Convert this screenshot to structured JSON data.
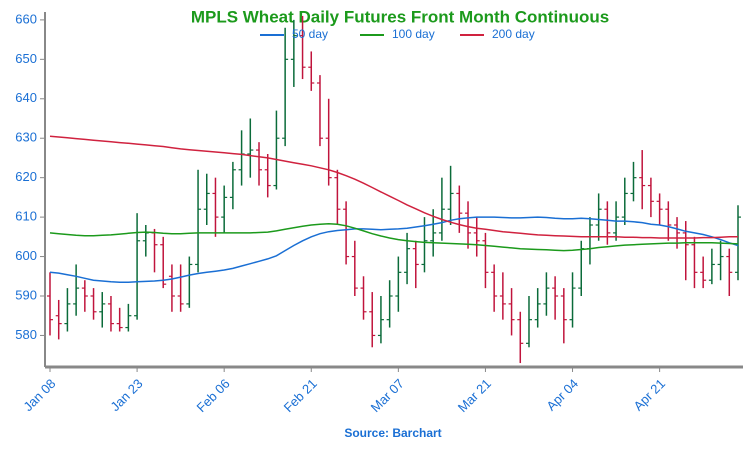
{
  "chart_data": {
    "type": "ohlc",
    "title": "MPLS Wheat Daily Futures Front Month Continuous",
    "source": "Source: Barchart",
    "categories": [
      "Jan 08",
      null,
      null,
      null,
      null,
      null,
      null,
      null,
      null,
      null,
      "Jan 23",
      null,
      null,
      null,
      null,
      null,
      null,
      null,
      null,
      null,
      "Feb 06",
      null,
      null,
      null,
      null,
      null,
      null,
      null,
      null,
      null,
      "Feb 21",
      null,
      null,
      null,
      null,
      null,
      null,
      null,
      null,
      null,
      "Mar 07",
      null,
      null,
      null,
      null,
      null,
      null,
      null,
      null,
      null,
      "Mar 21",
      null,
      null,
      null,
      null,
      null,
      null,
      null,
      null,
      null,
      "Apr 04",
      null,
      null,
      null,
      null,
      null,
      null,
      null,
      null,
      null,
      "Apr 21",
      null,
      null,
      null,
      null,
      null,
      null,
      null,
      null,
      null
    ],
    "open": [
      590,
      585,
      583,
      588,
      592,
      590,
      586,
      588,
      583,
      582,
      585,
      604,
      606,
      603,
      595,
      590,
      588,
      598,
      612,
      616,
      610,
      615,
      622,
      626,
      627,
      622,
      618,
      630,
      650,
      656,
      648,
      644,
      630,
      620,
      612,
      600,
      592,
      586,
      580,
      584,
      590,
      596,
      602,
      598,
      604,
      606,
      612,
      616,
      611,
      606,
      604,
      596,
      590,
      588,
      584,
      578,
      584,
      588,
      592,
      590,
      584,
      592,
      602,
      608,
      612,
      606,
      610,
      616,
      620,
      618,
      614,
      612,
      608,
      606,
      603,
      596,
      594,
      598,
      600,
      596
    ],
    "high": [
      596,
      589,
      592,
      598,
      594,
      592,
      591,
      590,
      587,
      588,
      611,
      608,
      607,
      605,
      598,
      598,
      600,
      622,
      621,
      620,
      618,
      624,
      632,
      635,
      629,
      626,
      637,
      658,
      660,
      661,
      652,
      646,
      640,
      622,
      614,
      604,
      595,
      591,
      590,
      594,
      600,
      606,
      604,
      610,
      612,
      620,
      623,
      618,
      614,
      610,
      606,
      598,
      596,
      592,
      586,
      590,
      592,
      596,
      595,
      592,
      596,
      604,
      610,
      616,
      614,
      614,
      620,
      624,
      627,
      620,
      616,
      614,
      610,
      609,
      605,
      600,
      602,
      604,
      602,
      613
    ],
    "low": [
      580,
      579,
      581,
      585,
      586,
      584,
      582,
      581,
      581,
      581,
      584,
      600,
      596,
      592,
      586,
      586,
      587,
      596,
      608,
      605,
      606,
      612,
      618,
      620,
      618,
      615,
      617,
      628,
      643,
      645,
      642,
      628,
      618,
      608,
      598,
      590,
      584,
      577,
      578,
      582,
      586,
      593,
      592,
      596,
      600,
      604,
      608,
      606,
      602,
      600,
      592,
      586,
      584,
      580,
      573,
      577,
      582,
      585,
      584,
      578,
      582,
      590,
      598,
      604,
      603,
      604,
      608,
      614,
      612,
      610,
      608,
      604,
      602,
      594,
      592,
      592,
      593,
      594,
      590,
      594
    ],
    "close": [
      584,
      583,
      588,
      592,
      590,
      586,
      588,
      583,
      582,
      585,
      604,
      606,
      603,
      593,
      590,
      588,
      598,
      612,
      616,
      610,
      615,
      622,
      626,
      627,
      622,
      618,
      630,
      650,
      656,
      648,
      644,
      630,
      620,
      612,
      600,
      592,
      586,
      580,
      584,
      590,
      596,
      602,
      598,
      604,
      606,
      612,
      616,
      611,
      606,
      604,
      596,
      590,
      588,
      584,
      578,
      584,
      588,
      592,
      590,
      584,
      592,
      602,
      608,
      612,
      606,
      610,
      616,
      620,
      618,
      614,
      612,
      608,
      606,
      603,
      596,
      594,
      598,
      600,
      596,
      610
    ],
    "up_color": "#0b6b3a",
    "down_color": "#c0143c",
    "series": [
      {
        "name": "50 day",
        "color": "#1a6fd4",
        "values": [
          596,
          595.8,
          595.4,
          595,
          594.5,
          594,
          593.8,
          593.6,
          593.5,
          593.5,
          593.6,
          593.7,
          593.8,
          594,
          594.3,
          594.8,
          595.3,
          595.7,
          596,
          596.3,
          596.6,
          597,
          597.6,
          598.2,
          598.8,
          599.4,
          600.2,
          601.5,
          602.8,
          604,
          605,
          605.8,
          606.3,
          606.6,
          606.8,
          607,
          607,
          606.9,
          606.8,
          606.9,
          607,
          607.2,
          607.5,
          607.8,
          608.2,
          608.6,
          609.2,
          609.6,
          609.8,
          610,
          610,
          610,
          609.9,
          609.8,
          609.8,
          609.9,
          610,
          609.9,
          609.7,
          609.6,
          609.6,
          609.7,
          609.6,
          609.4,
          609.2,
          609,
          609,
          608.8,
          608.6,
          608.2,
          608,
          607.6,
          607,
          606.4,
          606,
          605.6,
          605,
          604.3,
          603.5,
          602.8
        ]
      },
      {
        "name": "100 day",
        "color": "#1c9a1c",
        "values": [
          606,
          605.8,
          605.6,
          605.4,
          605.3,
          605.3,
          605.4,
          605.5,
          605.7,
          605.9,
          606.1,
          606.2,
          606.1,
          605.9,
          605.8,
          605.8,
          605.9,
          606,
          606,
          606,
          606,
          606,
          606,
          606,
          606.1,
          606.2,
          606.5,
          606.9,
          607.3,
          607.7,
          608,
          608.2,
          608.3,
          608.2,
          607.8,
          607.2,
          606.5,
          605.8,
          605.2,
          604.7,
          604.3,
          604,
          603.8,
          603.6,
          603.5,
          603.4,
          603.3,
          603.2,
          603.1,
          603,
          602.8,
          602.6,
          602.4,
          602.2,
          602,
          601.9,
          601.8,
          601.7,
          601.6,
          601.5,
          601.6,
          601.8,
          602,
          602.3,
          602.5,
          602.7,
          602.9,
          603,
          603.1,
          603.2,
          603.3,
          603.4,
          603.4,
          603.5,
          603.5,
          603.5,
          603.5,
          603.4,
          603.3,
          603.2
        ]
      },
      {
        "name": "200 day",
        "color": "#d0223f",
        "values": [
          630.5,
          630.3,
          630.1,
          629.9,
          629.7,
          629.5,
          629.3,
          629.1,
          628.9,
          628.7,
          628.5,
          628.3,
          628.1,
          627.9,
          627.6,
          627.3,
          627.1,
          626.9,
          626.7,
          626.5,
          626.3,
          626.1,
          625.9,
          625.6,
          625.3,
          625,
          624.6,
          624.2,
          623.8,
          623.4,
          623,
          622.5,
          622,
          621.3,
          620.5,
          619.6,
          618.6,
          617.5,
          616.4,
          615.3,
          614.2,
          613.1,
          612.1,
          611.1,
          610.2,
          609.4,
          608.7,
          608.1,
          607.6,
          607.2,
          606.9,
          606.6,
          606.3,
          606.1,
          605.9,
          605.7,
          605.5,
          605.4,
          605.3,
          605.2,
          605.1,
          605,
          605,
          605,
          605,
          605,
          604.9,
          604.9,
          604.8,
          604.8,
          604.7,
          604.7,
          604.7,
          604.7,
          604.7,
          604.8,
          604.8,
          604.9,
          605,
          605
        ]
      }
    ],
    "ylim": [
      572,
      662
    ],
    "yticks": [
      580,
      590,
      600,
      610,
      620,
      630,
      640,
      650,
      660
    ]
  }
}
